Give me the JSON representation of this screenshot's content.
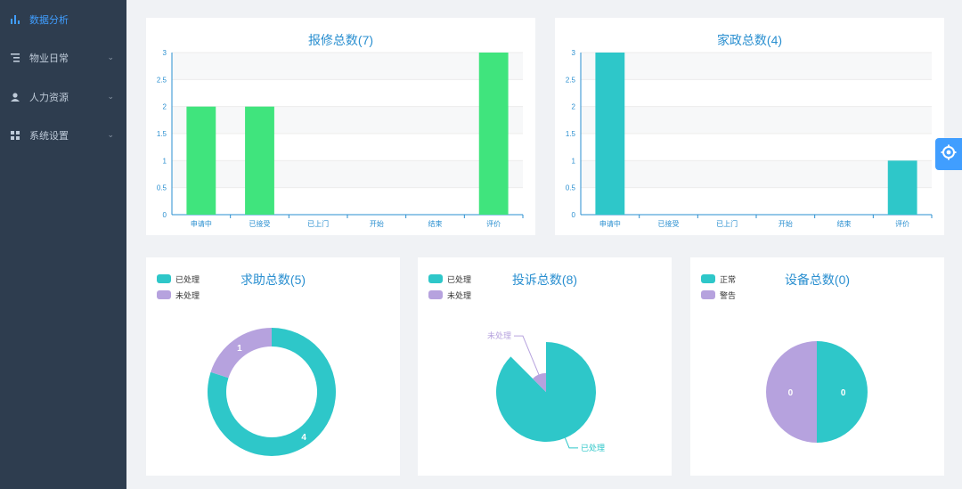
{
  "sidebar": {
    "items": [
      {
        "label": "数据分析",
        "icon": "bar-chart-icon",
        "active": true
      },
      {
        "label": "物业日常",
        "icon": "list-icon",
        "active": false
      },
      {
        "label": "人力资源",
        "icon": "user-icon",
        "active": false
      },
      {
        "label": "系统设置",
        "icon": "grid-icon",
        "active": false
      }
    ]
  },
  "float_button": {
    "icon": "settings-icon"
  },
  "colors": {
    "accent": "#409eff",
    "green": "#40e47d",
    "teal": "#2ec7c9",
    "purple": "#b6a2de",
    "title": "#2a8fd0",
    "sidebar": "#2e3d4f"
  },
  "chart_data": [
    {
      "type": "bar",
      "title": "报修总数(7)",
      "categories": [
        "申请中",
        "已接受",
        "已上门",
        "开始",
        "结束",
        "评价"
      ],
      "values": [
        2,
        2,
        0,
        0,
        0,
        3
      ],
      "ylim": [
        0,
        3
      ],
      "yticks": [
        "0",
        "0.5",
        "1",
        "1.5",
        "2",
        "2.5",
        "3"
      ],
      "color": "#40e47d"
    },
    {
      "type": "bar",
      "title": "家政总数(4)",
      "categories": [
        "申请中",
        "已接受",
        "已上门",
        "开始",
        "结束",
        "评价"
      ],
      "values": [
        3,
        0,
        0,
        0,
        0,
        1
      ],
      "ylim": [
        0,
        3
      ],
      "yticks": [
        "0",
        "0.5",
        "1",
        "1.5",
        "2",
        "2.5",
        "3"
      ],
      "color": "#2ec7c9"
    },
    {
      "type": "pie",
      "variant": "donut",
      "title": "求助总数(5)",
      "legend": [
        "已处理",
        "未处理"
      ],
      "slices": [
        {
          "name": "已处理",
          "value": 4,
          "label": "4",
          "color": "#2ec7c9"
        },
        {
          "name": "未处理",
          "value": 1,
          "label": "1",
          "color": "#b6a2de"
        }
      ]
    },
    {
      "type": "pie",
      "variant": "rose",
      "title": "投诉总数(8)",
      "legend": [
        "已处理",
        "未处理"
      ],
      "slices": [
        {
          "name": "已处理",
          "value": 7,
          "label": "已处理",
          "color": "#2ec7c9"
        },
        {
          "name": "未处理",
          "value": 1,
          "label": "未处理",
          "color": "#b6a2de"
        }
      ]
    },
    {
      "type": "pie",
      "variant": "pie",
      "title": "设备总数(0)",
      "legend": [
        "正常",
        "警告"
      ],
      "slices": [
        {
          "name": "正常",
          "value": 0,
          "label": "0",
          "color": "#2ec7c9"
        },
        {
          "name": "警告",
          "value": 0,
          "label": "0",
          "color": "#b6a2de"
        }
      ]
    }
  ]
}
